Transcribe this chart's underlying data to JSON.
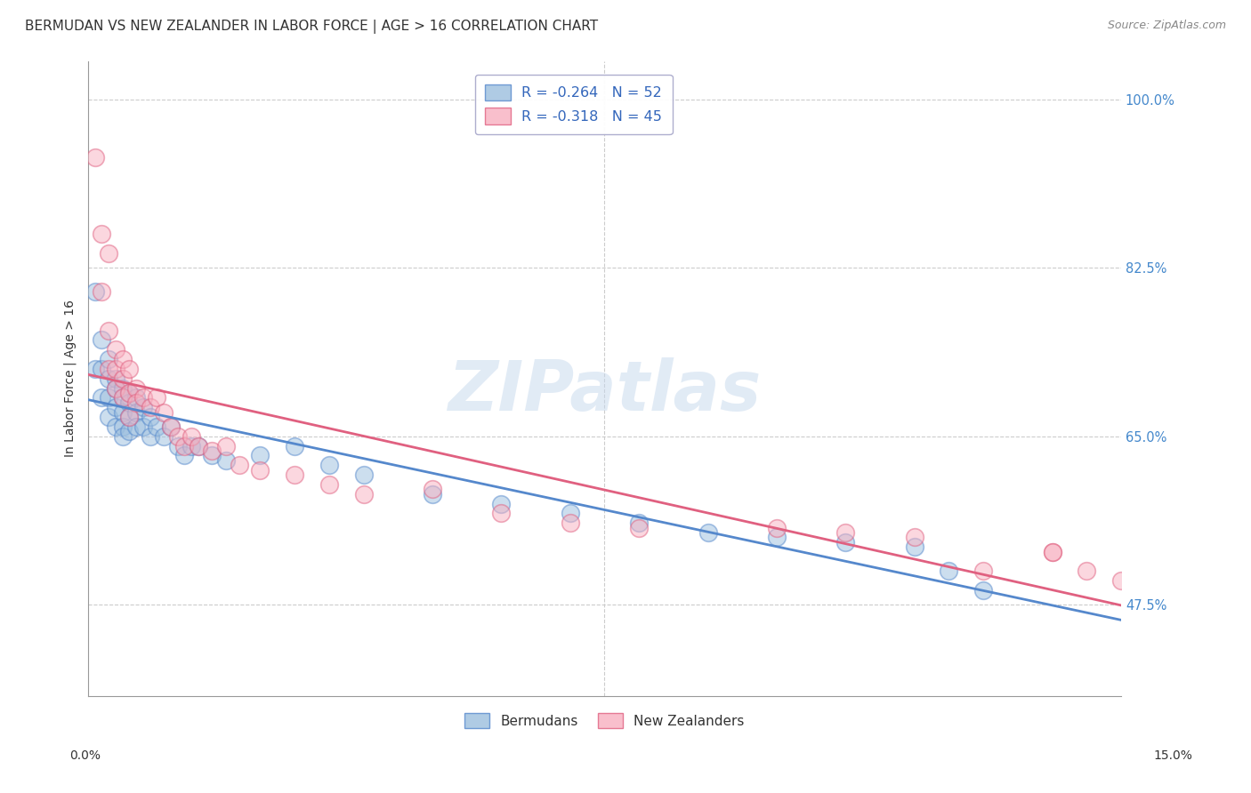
{
  "title": "BERMUDAN VS NEW ZEALANDER IN LABOR FORCE | AGE > 16 CORRELATION CHART",
  "source": "Source: ZipAtlas.com",
  "ylabel": "In Labor Force | Age > 16",
  "yticks_labels": [
    "47.5%",
    "65.0%",
    "82.5%",
    "100.0%"
  ],
  "ytick_vals": [
    0.475,
    0.65,
    0.825,
    1.0
  ],
  "xlim": [
    0.0,
    0.15
  ],
  "ylim": [
    0.38,
    1.04
  ],
  "legend_entries": [
    {
      "label": "R = -0.264   N = 52",
      "color": "#a8c8e8"
    },
    {
      "label": "R = -0.318   N = 45",
      "color": "#f8b8c8"
    }
  ],
  "legend_bottom": [
    "Bermudans",
    "New Zealanders"
  ],
  "blue_color": "#9bbede",
  "pink_color": "#f8b0c0",
  "line_blue": "#5588cc",
  "line_pink": "#e06080",
  "watermark": "ZIPatlas",
  "bermudans_x": [
    0.001,
    0.001,
    0.002,
    0.002,
    0.002,
    0.003,
    0.003,
    0.003,
    0.003,
    0.004,
    0.004,
    0.004,
    0.004,
    0.005,
    0.005,
    0.005,
    0.005,
    0.005,
    0.006,
    0.006,
    0.006,
    0.006,
    0.007,
    0.007,
    0.007,
    0.008,
    0.008,
    0.009,
    0.009,
    0.01,
    0.011,
    0.012,
    0.013,
    0.014,
    0.015,
    0.016,
    0.018,
    0.02,
    0.025,
    0.03,
    0.035,
    0.04,
    0.05,
    0.06,
    0.07,
    0.08,
    0.09,
    0.1,
    0.11,
    0.12,
    0.125,
    0.13
  ],
  "bermudans_y": [
    0.8,
    0.72,
    0.75,
    0.72,
    0.69,
    0.73,
    0.71,
    0.69,
    0.67,
    0.71,
    0.7,
    0.68,
    0.66,
    0.7,
    0.69,
    0.675,
    0.66,
    0.65,
    0.695,
    0.685,
    0.67,
    0.655,
    0.69,
    0.675,
    0.66,
    0.68,
    0.66,
    0.67,
    0.65,
    0.66,
    0.65,
    0.66,
    0.64,
    0.63,
    0.64,
    0.64,
    0.63,
    0.625,
    0.63,
    0.64,
    0.62,
    0.61,
    0.59,
    0.58,
    0.57,
    0.56,
    0.55,
    0.545,
    0.54,
    0.535,
    0.51,
    0.49
  ],
  "new_zealanders_x": [
    0.001,
    0.002,
    0.002,
    0.003,
    0.003,
    0.003,
    0.004,
    0.004,
    0.004,
    0.005,
    0.005,
    0.005,
    0.006,
    0.006,
    0.006,
    0.007,
    0.007,
    0.008,
    0.009,
    0.01,
    0.011,
    0.012,
    0.013,
    0.014,
    0.015,
    0.016,
    0.018,
    0.02,
    0.022,
    0.025,
    0.03,
    0.035,
    0.04,
    0.05,
    0.06,
    0.07,
    0.08,
    0.1,
    0.11,
    0.12,
    0.13,
    0.14,
    0.14,
    0.145,
    0.15
  ],
  "new_zealanders_y": [
    0.94,
    0.86,
    0.8,
    0.84,
    0.76,
    0.72,
    0.74,
    0.72,
    0.7,
    0.73,
    0.71,
    0.69,
    0.72,
    0.695,
    0.67,
    0.7,
    0.685,
    0.69,
    0.68,
    0.69,
    0.675,
    0.66,
    0.65,
    0.64,
    0.65,
    0.64,
    0.635,
    0.64,
    0.62,
    0.615,
    0.61,
    0.6,
    0.59,
    0.595,
    0.57,
    0.56,
    0.555,
    0.555,
    0.55,
    0.545,
    0.51,
    0.53,
    0.53,
    0.51,
    0.5
  ],
  "title_fontsize": 11,
  "axis_label_fontsize": 10,
  "tick_fontsize": 10.5
}
